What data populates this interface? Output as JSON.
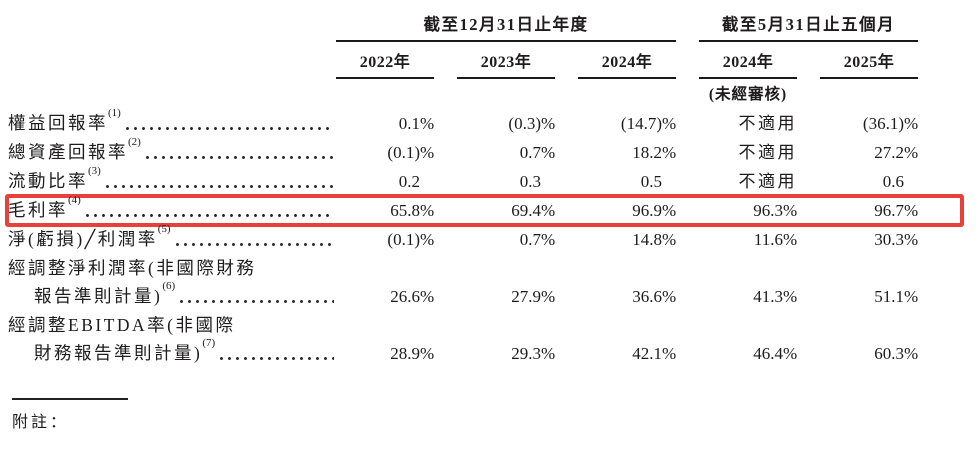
{
  "colors": {
    "highlight_red": "#e8403a",
    "text": "#1d1b1b",
    "rule": "#1a1a1a"
  },
  "table": {
    "column_groups": [
      {
        "title": "截至12月31日止年度",
        "years": [
          "2022年",
          "2023年",
          "2024年"
        ]
      },
      {
        "title": "截至5月31日止五個月",
        "years": [
          "2024年",
          "2025年"
        ],
        "subnote": "(未經審核)",
        "subnote_year_index": 0
      }
    ],
    "rows": [
      {
        "label": "權益回報率",
        "footnote": "(1)",
        "values": [
          "0.1%",
          "(0.3)%",
          "(14.7)%",
          "不適用",
          "(36.1)%"
        ],
        "highlight": false
      },
      {
        "label": "總資產回報率",
        "footnote": "(2)",
        "values": [
          "(0.1)%",
          "0.7%",
          "18.2%",
          "不適用",
          "27.2%"
        ],
        "highlight": false
      },
      {
        "label": "流動比率",
        "footnote": "(3)",
        "values": [
          "0.2",
          "0.3",
          "0.5",
          "不適用",
          "0.6"
        ],
        "highlight": false
      },
      {
        "label": "毛利率",
        "footnote": "(4)",
        "values": [
          "65.8%",
          "69.4%",
          "96.9%",
          "96.3%",
          "96.7%"
        ],
        "highlight": true
      },
      {
        "label": "淨(虧損)╱利潤率",
        "footnote": "(5)",
        "values": [
          "(0.1)%",
          "0.7%",
          "14.8%",
          "11.6%",
          "30.3%"
        ],
        "highlight": false
      },
      {
        "label_lines": [
          "經調整淨利潤率(非國際財務",
          "報告準則計量)"
        ],
        "footnote": "(6)",
        "values": [
          "26.6%",
          "27.9%",
          "36.6%",
          "41.3%",
          "51.1%"
        ],
        "highlight": false
      },
      {
        "label_lines": [
          "經調整EBITDA率(非國際",
          "財務報告準則計量)"
        ],
        "footnote": "(7)",
        "values": [
          "28.9%",
          "29.3%",
          "42.1%",
          "46.4%",
          "60.3%"
        ],
        "highlight": false
      }
    ],
    "not_applicable_text": "不適用"
  },
  "footer": {
    "note_label": "附註："
  }
}
